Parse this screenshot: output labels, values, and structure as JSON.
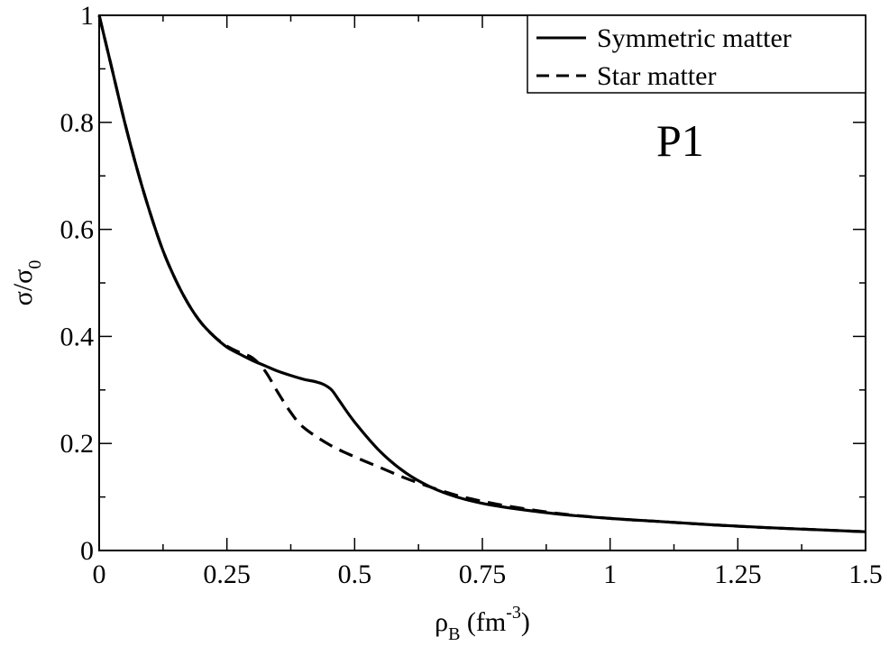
{
  "chart_data": {
    "type": "line",
    "title": "",
    "xlabel": {
      "main": "ρ",
      "sub": "B",
      "units_pre": " (fm",
      "units_sup": "-3",
      "units_post": ")"
    },
    "ylabel": {
      "num": "σ/σ",
      "sub": "0"
    },
    "xlim": [
      0,
      1.5
    ],
    "ylim": [
      0,
      1
    ],
    "xticks": [
      0,
      0.25,
      0.5,
      0.75,
      1,
      1.25,
      1.5
    ],
    "xtick_labels": [
      "0",
      "0.25",
      "0.5",
      "0.75",
      "1",
      "1.25",
      "1.5"
    ],
    "yticks": [
      0,
      0.2,
      0.4,
      0.6,
      0.8,
      1
    ],
    "ytick_labels": [
      "0",
      "0.2",
      "0.4",
      "0.6",
      "0.8",
      "1"
    ],
    "grid": false,
    "legend_position": "top-right",
    "annotation": "P1",
    "series": [
      {
        "name": "Symmetric matter",
        "style": "solid",
        "color": "#000000",
        "x": [
          0,
          0.025,
          0.05,
          0.075,
          0.1,
          0.125,
          0.15,
          0.175,
          0.2,
          0.225,
          0.25,
          0.275,
          0.3,
          0.325,
          0.35,
          0.375,
          0.4,
          0.425,
          0.44,
          0.455,
          0.47,
          0.5,
          0.55,
          0.6,
          0.65,
          0.7,
          0.75,
          0.8,
          0.9,
          1.0,
          1.1,
          1.2,
          1.3,
          1.4,
          1.5
        ],
        "y": [
          1.0,
          0.9,
          0.8,
          0.71,
          0.63,
          0.56,
          0.505,
          0.46,
          0.425,
          0.4,
          0.38,
          0.367,
          0.355,
          0.345,
          0.335,
          0.327,
          0.32,
          0.315,
          0.31,
          0.3,
          0.28,
          0.24,
          0.185,
          0.145,
          0.118,
          0.1,
          0.088,
          0.08,
          0.068,
          0.06,
          0.054,
          0.048,
          0.043,
          0.039,
          0.035
        ]
      },
      {
        "name": "Star matter",
        "style": "dashed",
        "color": "#000000",
        "x": [
          0,
          0.025,
          0.05,
          0.075,
          0.1,
          0.125,
          0.15,
          0.175,
          0.2,
          0.225,
          0.25,
          0.275,
          0.3,
          0.325,
          0.35,
          0.375,
          0.4,
          0.45,
          0.5,
          0.55,
          0.6,
          0.65,
          0.7,
          0.75,
          0.8,
          0.9,
          1.0,
          1.1,
          1.2,
          1.3,
          1.4,
          1.5
        ],
        "y": [
          1.0,
          0.9,
          0.8,
          0.71,
          0.63,
          0.56,
          0.505,
          0.46,
          0.425,
          0.4,
          0.382,
          0.37,
          0.36,
          0.335,
          0.295,
          0.258,
          0.23,
          0.198,
          0.175,
          0.155,
          0.135,
          0.118,
          0.103,
          0.092,
          0.083,
          0.069,
          0.06,
          0.054,
          0.048,
          0.043,
          0.039,
          0.035
        ]
      }
    ]
  }
}
